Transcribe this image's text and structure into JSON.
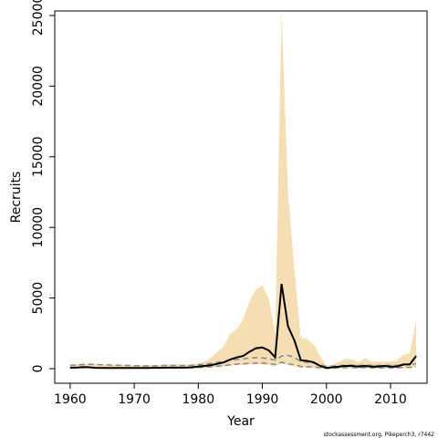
{
  "chart_data": {
    "type": "line",
    "xlabel": "Year",
    "ylabel": "Recruits",
    "footnote": "stockassessment.org, Pikeperch3, r7442",
    "x": [
      1960,
      1961,
      1962,
      1963,
      1964,
      1965,
      1966,
      1967,
      1968,
      1969,
      1970,
      1971,
      1972,
      1973,
      1974,
      1975,
      1976,
      1977,
      1978,
      1979,
      1980,
      1981,
      1982,
      1983,
      1984,
      1985,
      1986,
      1987,
      1988,
      1989,
      1990,
      1991,
      1992,
      1993,
      1994,
      1995,
      1996,
      1997,
      1998,
      1999,
      2000,
      2001,
      2002,
      2003,
      2004,
      2005,
      2006,
      2007,
      2008,
      2009,
      2010,
      2011,
      2012,
      2013,
      2014
    ],
    "band": {
      "color": "#f5deb3",
      "lower": [
        20,
        20,
        30,
        30,
        20,
        20,
        20,
        20,
        20,
        20,
        20,
        20,
        20,
        20,
        20,
        30,
        30,
        30,
        30,
        30,
        40,
        50,
        80,
        120,
        150,
        200,
        250,
        250,
        300,
        300,
        300,
        250,
        150,
        400,
        250,
        150,
        80,
        80,
        60,
        30,
        10,
        20,
        30,
        40,
        40,
        30,
        40,
        30,
        30,
        30,
        30,
        30,
        40,
        40,
        100
      ],
      "upper": [
        300,
        300,
        350,
        350,
        350,
        300,
        300,
        300,
        300,
        300,
        250,
        250,
        250,
        250,
        250,
        300,
        300,
        300,
        300,
        300,
        400,
        500,
        800,
        1200,
        1600,
        2500,
        2800,
        3500,
        4800,
        5600,
        5900,
        5000,
        2500,
        25200,
        12500,
        7000,
        2200,
        2100,
        1700,
        900,
        200,
        300,
        500,
        700,
        650,
        450,
        750,
        500,
        500,
        500,
        500,
        550,
        1000,
        1100,
        3400
      ]
    },
    "series": [
      {
        "color": "#000000",
        "width": 2,
        "dash": false,
        "values": [
          80,
          80,
          120,
          100,
          60,
          50,
          50,
          50,
          50,
          50,
          50,
          50,
          50,
          60,
          60,
          80,
          80,
          80,
          80,
          100,
          150,
          200,
          250,
          350,
          450,
          650,
          800,
          900,
          1200,
          1450,
          1500,
          1300,
          800,
          6000,
          3000,
          2000,
          600,
          550,
          450,
          200,
          50,
          100,
          150,
          200,
          200,
          150,
          200,
          150,
          150,
          200,
          150,
          150,
          300,
          300,
          900
        ]
      },
      {
        "color": "#888888",
        "width": 1.5,
        "dash": true,
        "values": [
          250,
          250,
          300,
          320,
          300,
          280,
          260,
          250,
          240,
          230,
          220,
          200,
          200,
          200,
          220,
          240,
          240,
          230,
          230,
          240,
          280,
          320,
          380,
          450,
          520,
          600,
          650,
          700,
          750,
          780,
          760,
          700,
          600,
          900,
          950,
          800,
          500,
          450,
          400,
          300,
          150,
          180,
          220,
          250,
          250,
          230,
          250,
          230,
          230,
          240,
          240,
          240,
          300,
          300,
          350
        ]
      },
      {
        "color": "#888888",
        "width": 1.5,
        "dash": true,
        "values": [
          60,
          60,
          80,
          80,
          60,
          50,
          50,
          50,
          50,
          50,
          50,
          50,
          50,
          50,
          50,
          60,
          60,
          60,
          60,
          70,
          90,
          110,
          140,
          180,
          220,
          280,
          320,
          350,
          380,
          400,
          400,
          370,
          300,
          450,
          350,
          280,
          150,
          140,
          120,
          70,
          20,
          40,
          60,
          80,
          80,
          60,
          80,
          60,
          60,
          70,
          60,
          60,
          90,
          90,
          150
        ]
      }
    ],
    "xlim": [
      1957.6,
      2015.7
    ],
    "xticks": [
      1960,
      1970,
      1980,
      1990,
      2000,
      2010
    ],
    "ylim": [
      -1030,
      25320
    ],
    "yticks": [
      0,
      5000,
      10000,
      15000,
      20000,
      25000
    ]
  }
}
